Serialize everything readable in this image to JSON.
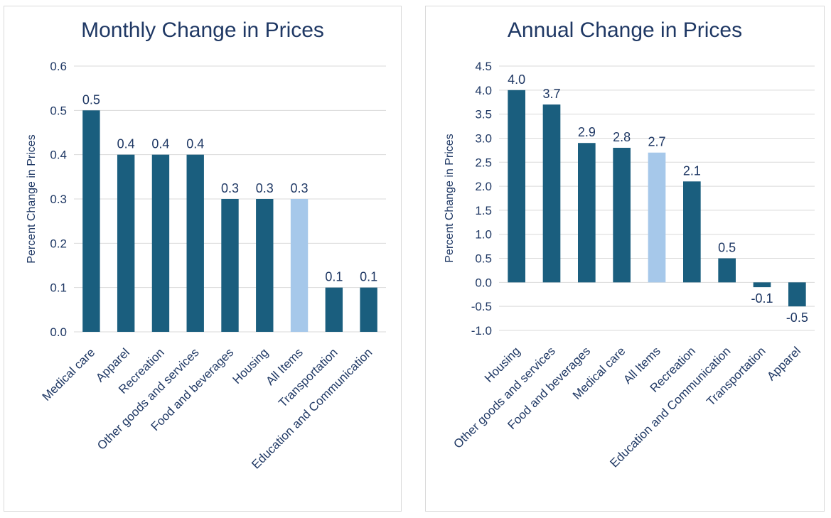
{
  "chart_data": [
    {
      "type": "bar",
      "title": "Monthly Change in Prices",
      "ylabel": "Percent Change in Prices",
      "xlabel": "",
      "ylim": [
        0,
        0.6
      ],
      "ytick_step": 0.1,
      "ytick_decimals": 1,
      "grid": true,
      "data_labels": true,
      "categories": [
        "Medical care",
        "Apparel",
        "Recreation",
        "Other goods and services",
        "Food and beverages",
        "Housing",
        "All Items",
        "Transportation",
        "Education and Communication"
      ],
      "values": [
        0.5,
        0.4,
        0.4,
        0.4,
        0.3,
        0.3,
        0.3,
        0.1,
        0.1
      ],
      "highlight_category": "All Items",
      "colors": {
        "bar": "#1a5e7e",
        "highlight": "#a6c8ea",
        "grid": "#d9d9d9",
        "text": "#1f3864"
      }
    },
    {
      "type": "bar",
      "title": "Annual Change in Prices",
      "ylabel": "Percent Change in Prices",
      "xlabel": "",
      "ylim": [
        -1.0,
        4.5
      ],
      "ytick_step": 0.5,
      "ytick_decimals": 1,
      "grid": true,
      "data_labels": true,
      "categories": [
        "Housing",
        "Other goods and services",
        "Food and beverages",
        "Medical care",
        "All Items",
        "Recreation",
        "Education and Communication",
        "Transportation",
        "Apparel"
      ],
      "values": [
        4.0,
        3.7,
        2.9,
        2.8,
        2.7,
        2.1,
        0.5,
        -0.1,
        -0.5
      ],
      "highlight_category": "All Items",
      "colors": {
        "bar": "#1a5e7e",
        "highlight": "#a6c8ea",
        "grid": "#d9d9d9",
        "text": "#1f3864"
      }
    }
  ]
}
